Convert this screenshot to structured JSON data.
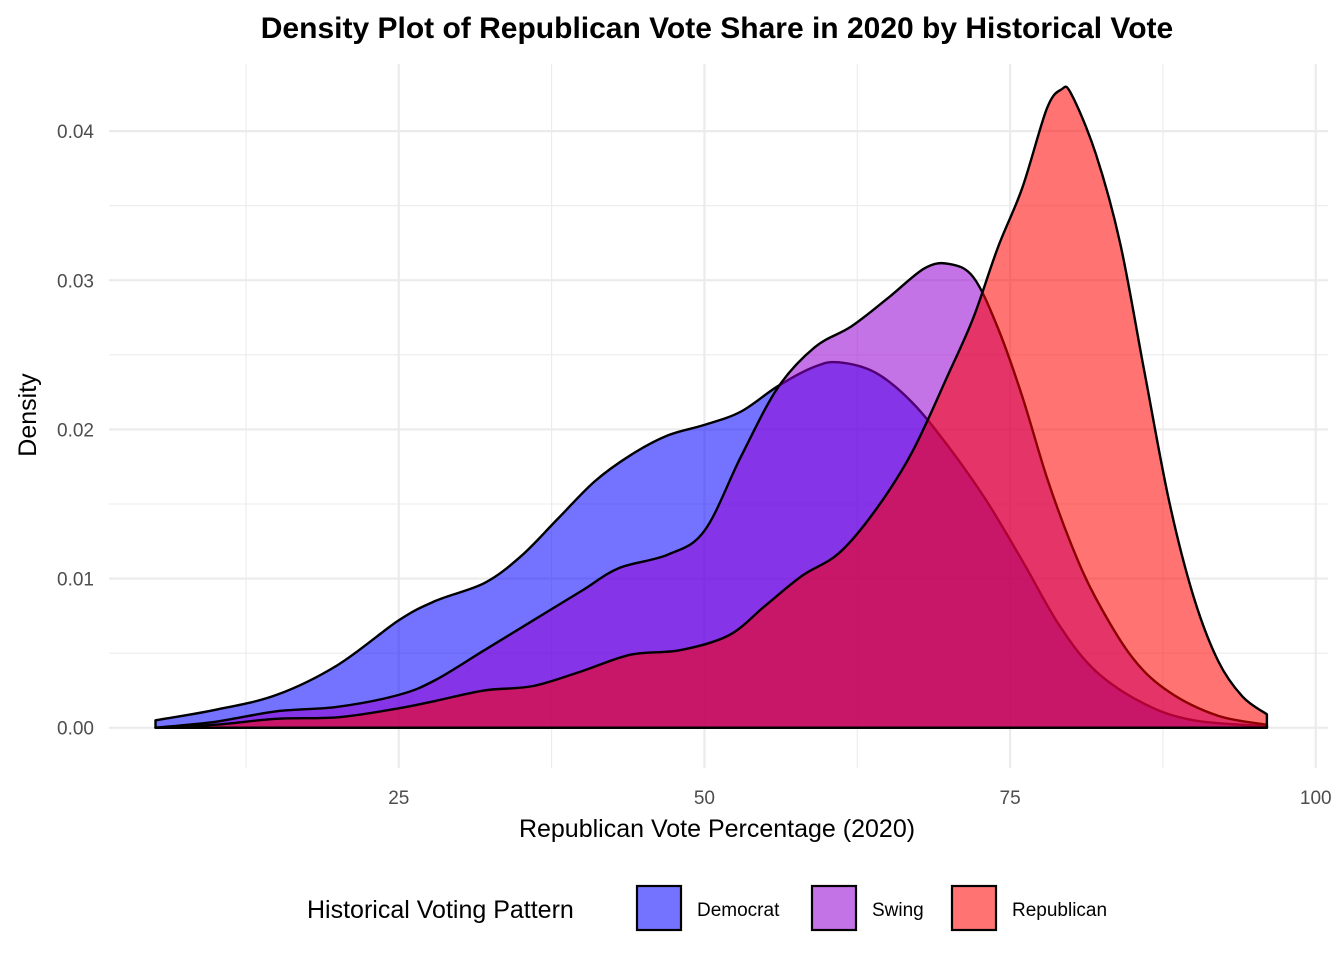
{
  "chart_data": {
    "type": "area",
    "title": "Density Plot of Republican Vote Share in 2020 by Historical Vote",
    "xlabel": "Republican Vote Percentage (2020)",
    "ylabel": "Density",
    "xlim": [
      1.3,
      101
    ],
    "ylim": [
      -0.0027,
      0.0445
    ],
    "x_ticks": [
      25,
      50,
      75,
      100
    ],
    "x_tick_labels": [
      "25",
      "50",
      "75",
      "100"
    ],
    "y_ticks": [
      0.0,
      0.01,
      0.02,
      0.03,
      0.04
    ],
    "y_tick_labels": [
      "0.00",
      "0.01",
      "0.02",
      "0.03",
      "0.04"
    ],
    "grid": true,
    "legend": {
      "title": "Historical Voting Pattern",
      "position": "bottom"
    },
    "fill_opacity": 0.55,
    "series": [
      {
        "name": "Democrat",
        "color": "#0000FF",
        "points": [
          [
            5.1,
            0.0005
          ],
          [
            10,
            0.0012
          ],
          [
            15,
            0.0022
          ],
          [
            20,
            0.0042
          ],
          [
            25,
            0.0072
          ],
          [
            28,
            0.0085
          ],
          [
            32,
            0.0097
          ],
          [
            35,
            0.0115
          ],
          [
            38,
            0.014
          ],
          [
            41,
            0.0165
          ],
          [
            44,
            0.0183
          ],
          [
            47,
            0.0196
          ],
          [
            50,
            0.0203
          ],
          [
            53,
            0.0212
          ],
          [
            56,
            0.0229
          ],
          [
            59,
            0.0242
          ],
          [
            61,
            0.0245
          ],
          [
            64,
            0.0238
          ],
          [
            67,
            0.0218
          ],
          [
            70,
            0.0188
          ],
          [
            73,
            0.0153
          ],
          [
            76,
            0.0112
          ],
          [
            79,
            0.0069
          ],
          [
            82,
            0.0038
          ],
          [
            86,
            0.0016
          ],
          [
            90,
            0.0005
          ],
          [
            96,
            0.0001
          ]
        ]
      },
      {
        "name": "Swing",
        "color": "#9400D3",
        "points": [
          [
            5.1,
            0.0
          ],
          [
            10,
            0.0004
          ],
          [
            15,
            0.0011
          ],
          [
            20,
            0.0014
          ],
          [
            25,
            0.0022
          ],
          [
            28,
            0.0032
          ],
          [
            32,
            0.0052
          ],
          [
            36,
            0.0072
          ],
          [
            40,
            0.0092
          ],
          [
            43,
            0.0107
          ],
          [
            47,
            0.0116
          ],
          [
            50,
            0.0132
          ],
          [
            53,
            0.0182
          ],
          [
            56,
            0.0228
          ],
          [
            59,
            0.0255
          ],
          [
            62,
            0.0269
          ],
          [
            65,
            0.0288
          ],
          [
            68,
            0.0308
          ],
          [
            70,
            0.0311
          ],
          [
            72,
            0.0302
          ],
          [
            74,
            0.0268
          ],
          [
            76,
            0.0222
          ],
          [
            78,
            0.0168
          ],
          [
            80,
            0.0123
          ],
          [
            82,
            0.0087
          ],
          [
            85,
            0.0047
          ],
          [
            88,
            0.0024
          ],
          [
            92,
            0.0008
          ],
          [
            96,
            0.0002
          ]
        ]
      },
      {
        "name": "Republican",
        "color": "#FF0000",
        "points": [
          [
            5.1,
            0.0
          ],
          [
            10,
            0.0002
          ],
          [
            15,
            0.0006
          ],
          [
            20,
            0.0007
          ],
          [
            25,
            0.0013
          ],
          [
            28,
            0.0018
          ],
          [
            32,
            0.0025
          ],
          [
            36,
            0.0028
          ],
          [
            40,
            0.0038
          ],
          [
            44,
            0.0049
          ],
          [
            48,
            0.0052
          ],
          [
            52,
            0.0062
          ],
          [
            55,
            0.0082
          ],
          [
            58,
            0.0102
          ],
          [
            61,
            0.0117
          ],
          [
            64,
            0.0146
          ],
          [
            67,
            0.0185
          ],
          [
            70,
            0.0238
          ],
          [
            72,
            0.0275
          ],
          [
            74,
            0.0322
          ],
          [
            76,
            0.0362
          ],
          [
            78,
            0.0415
          ],
          [
            79.2,
            0.0428
          ],
          [
            80,
            0.0425
          ],
          [
            82,
            0.0385
          ],
          [
            84,
            0.0325
          ],
          [
            86,
            0.0238
          ],
          [
            88,
            0.0152
          ],
          [
            90,
            0.0088
          ],
          [
            92,
            0.0045
          ],
          [
            94,
            0.0021
          ],
          [
            96,
            0.0009
          ]
        ]
      }
    ]
  }
}
